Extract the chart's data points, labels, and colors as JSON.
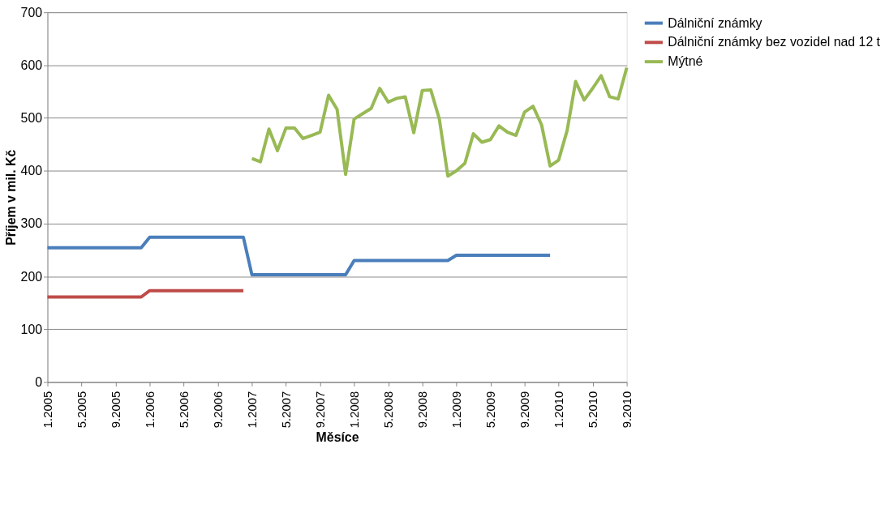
{
  "chart_data": {
    "type": "line",
    "xlabel": "Měsíce",
    "ylabel": "Příjem v mil. Kč",
    "categories": [
      "1.2005",
      null,
      null,
      null,
      "5.2005",
      null,
      null,
      null,
      "9.2005",
      null,
      null,
      null,
      "1.2006",
      null,
      null,
      null,
      "5.2006",
      null,
      null,
      null,
      "9.2006",
      null,
      null,
      null,
      "1.2007",
      null,
      null,
      null,
      "5.2007",
      null,
      null,
      null,
      "9.2007",
      null,
      null,
      null,
      "1.2008",
      null,
      null,
      null,
      "5.2008",
      null,
      null,
      null,
      "9.2008",
      null,
      null,
      null,
      "1.2009",
      null,
      null,
      null,
      "5.2009",
      null,
      null,
      null,
      "9.2009",
      null,
      null,
      null,
      "1.2010",
      null,
      null,
      null,
      "5.2010",
      null,
      null,
      null,
      "9.2010"
    ],
    "series": [
      {
        "name": "Dálniční známky",
        "color": "#4a7ebb",
        "values": [
          254,
          254,
          254,
          254,
          254,
          254,
          254,
          254,
          254,
          254,
          254,
          254,
          274,
          274,
          274,
          274,
          274,
          274,
          274,
          274,
          274,
          274,
          274,
          274,
          203,
          203,
          203,
          203,
          203,
          203,
          203,
          203,
          203,
          203,
          203,
          203,
          230,
          230,
          230,
          230,
          230,
          230,
          230,
          230,
          230,
          230,
          230,
          230,
          240,
          240,
          240,
          240,
          240,
          240,
          240,
          240,
          240,
          240,
          240,
          240,
          null,
          null,
          null,
          null,
          null,
          null,
          null,
          null,
          null
        ]
      },
      {
        "name": "Dálniční známky bez vozidel nad 12 t",
        "color": "#be4b48",
        "values": [
          161,
          161,
          161,
          161,
          161,
          161,
          161,
          161,
          161,
          161,
          161,
          161,
          173,
          173,
          173,
          173,
          173,
          173,
          173,
          173,
          173,
          173,
          173,
          173,
          null,
          null,
          null,
          null,
          null,
          null,
          null,
          null,
          null,
          null,
          null,
          null,
          null,
          null,
          null,
          null,
          null,
          null,
          null,
          null,
          null,
          null,
          null,
          null,
          null,
          null,
          null,
          null,
          null,
          null,
          null,
          null,
          null,
          null,
          null,
          null,
          null,
          null,
          null,
          null,
          null,
          null,
          null,
          null,
          null
        ]
      },
      {
        "name": "Mýtné",
        "color": "#98b954",
        "values": [
          null,
          null,
          null,
          null,
          null,
          null,
          null,
          null,
          null,
          null,
          null,
          null,
          null,
          null,
          null,
          null,
          null,
          null,
          null,
          null,
          null,
          null,
          null,
          null,
          423,
          417,
          479,
          438,
          481,
          481,
          461,
          467,
          473,
          543,
          516,
          393,
          498,
          508,
          518,
          556,
          530,
          537,
          540,
          472,
          552,
          553,
          498,
          390,
          400,
          414,
          470,
          454,
          459,
          485,
          473,
          467,
          511,
          522,
          487,
          409,
          420,
          476,
          569,
          534,
          556,
          580,
          540,
          536,
          595
        ]
      }
    ],
    "ylim": [
      0,
      700
    ],
    "yticks": [
      0,
      100,
      200,
      300,
      400,
      500,
      600,
      700
    ],
    "grid": "y",
    "legend": "right",
    "line_style": "solid",
    "marker": "none"
  }
}
